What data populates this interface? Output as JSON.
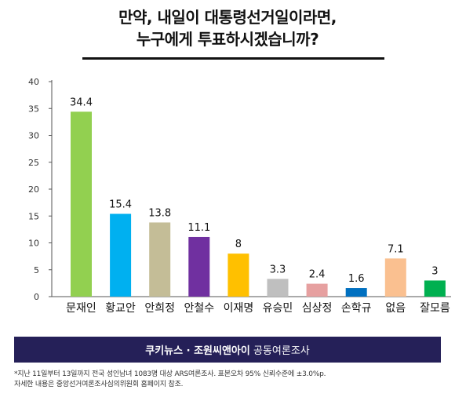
{
  "title": {
    "line1": "만약, 내일이 대통령선거일이라면,",
    "line2": "누구에게 투표하시겠습니까?"
  },
  "chart_data": {
    "type": "bar",
    "categories": [
      "문재인",
      "황교안",
      "안희정",
      "안철수",
      "이재명",
      "유승민",
      "심상정",
      "손학규",
      "없음",
      "잘모름"
    ],
    "values": [
      34.4,
      15.4,
      13.8,
      11.1,
      8,
      3.3,
      2.4,
      1.6,
      7.1,
      3
    ],
    "value_labels": [
      "34.4",
      "15.4",
      "13.8",
      "11.1",
      "8",
      "3.3",
      "2.4",
      "1.6",
      "7.1",
      "3"
    ],
    "colors": [
      "#92d050",
      "#00b0f0",
      "#c4bd97",
      "#7030a0",
      "#ffc000",
      "#bfbfbf",
      "#e6a0a0",
      "#0070c0",
      "#fac090",
      "#00b050"
    ],
    "ylim": [
      0,
      40
    ],
    "yticks": [
      0,
      5,
      10,
      15,
      20,
      25,
      30,
      35,
      40
    ],
    "xlabel": "",
    "ylabel": "",
    "grid": false
  },
  "source": {
    "bold": "쿠키뉴스 · 조원씨앤아이",
    "normal": "공동여론조사"
  },
  "footnote": {
    "line1": "*지난 11일부터 13일까지 전국 성인남녀 1083명 대상 ARS여론조사. 표본오차 95% 신뢰수준에 ±3.0%p.",
    "line2": "자세한 내용은 중앙선거여론조사심의위원회 홈페이지 참조."
  }
}
